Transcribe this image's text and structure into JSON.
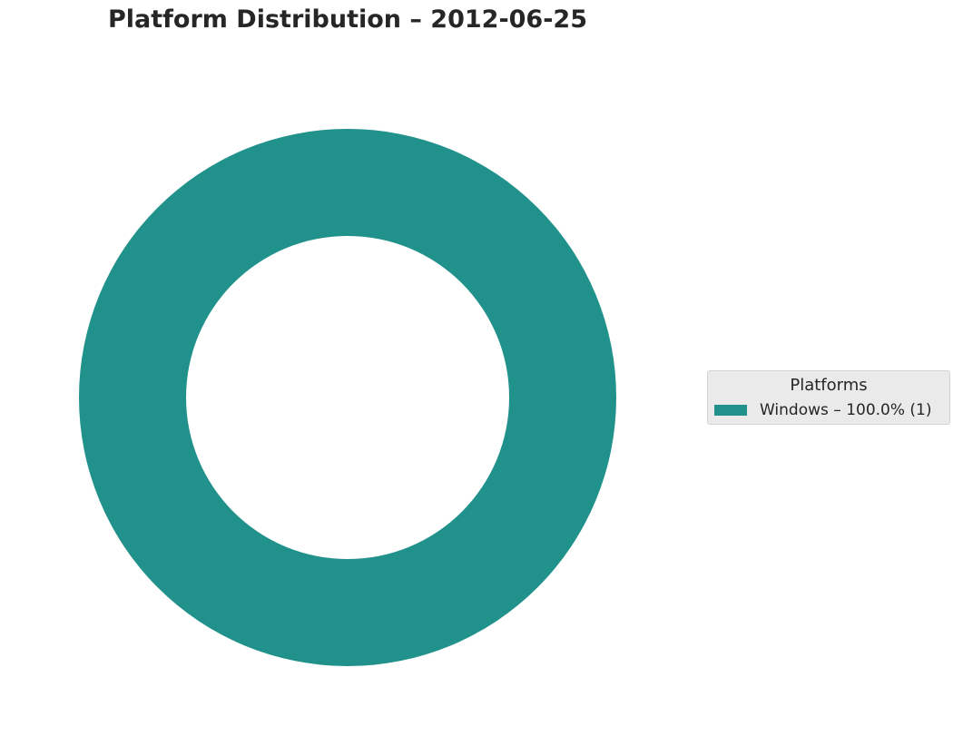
{
  "chart_data": {
    "type": "pie",
    "style": "donut",
    "title": "Platform Distribution – 2012-06-25",
    "categories": [
      "Windows"
    ],
    "values": [
      1
    ],
    "colors": [
      "#21918c"
    ],
    "legend": {
      "title": "Platforms",
      "placement": "right",
      "entries": [
        {
          "label": "Windows – 100.0% (1)",
          "color": "#21918c"
        }
      ]
    }
  }
}
